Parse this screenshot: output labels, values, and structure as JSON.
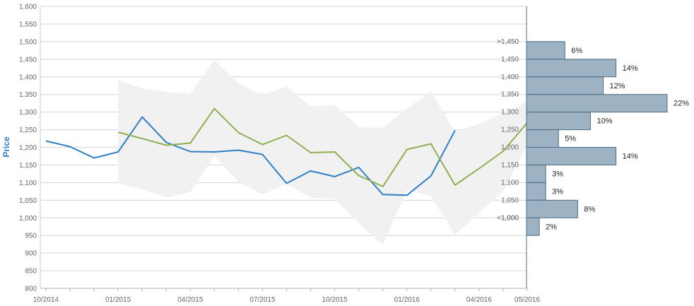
{
  "chart_data": {
    "type": "line",
    "title": "",
    "xlabel": "",
    "ylabel": "Price",
    "ylim": [
      800,
      1600
    ],
    "y_ticks": [
      "1,600",
      "1,550",
      "1,500",
      "1,450",
      "1,400",
      "1,350",
      "1,300",
      "1,250",
      "1,200",
      "1,150",
      "1,100",
      "1,050",
      "1,000",
      "950",
      "900",
      "850",
      "800"
    ],
    "x_tick_labels": [
      "10/2014",
      "01/2015",
      "04/2015",
      "07/2015",
      "10/2015",
      "01/2016",
      "04/2016",
      "05/2016"
    ],
    "grid": true,
    "colors": {
      "series_blue": "#2f80c8",
      "series_green": "#8eb050",
      "band_fill": "#f1f1f1",
      "hist_fill": "#9db2c2",
      "hist_stroke": "#4d6b80",
      "ylabel_color": "#2f80c8"
    },
    "series": [
      {
        "values": [
          1218,
          1202,
          1170,
          1187,
          1286,
          1214,
          1188,
          1187,
          1192,
          1180,
          1098,
          1133,
          1117,
          1143,
          1066,
          1064,
          1119,
          1248
        ]
      },
      {
        "values": [
          null,
          null,
          null,
          1243,
          1225,
          1206,
          1212,
          1310,
          1242,
          1208,
          1234,
          1185,
          1187,
          1120,
          1089,
          1194,
          1210,
          1093,
          1140,
          1189,
          1270
        ]
      }
    ],
    "band": {
      "upper": [
        null,
        null,
        null,
        1390,
        1368,
        1357,
        1352,
        1447,
        1383,
        1347,
        1373,
        1316,
        1320,
        1257,
        1256,
        1310,
        1358,
        1245,
        1266,
        1298,
        1331
      ],
      "lower": [
        null,
        null,
        null,
        1098,
        1081,
        1057,
        1073,
        1175,
        1103,
        1066,
        1097,
        1057,
        1054,
        984,
        923,
        1079,
        1062,
        952,
        1014,
        1075,
        1208
      ]
    },
    "histogram": {
      "bins": [
        ">1,450",
        "1,450",
        "1,400",
        "1,350",
        "1,300",
        "1,250",
        "1,200",
        "1,150",
        "1,100",
        "1,050",
        "1,000",
        "<1,000"
      ],
      "percent_labels": [
        "6%",
        "14%",
        "12%",
        "22%",
        "10%",
        "5%",
        "14%",
        "3%",
        "3%",
        "8%",
        "2%"
      ],
      "percent_values": [
        6,
        14,
        12,
        22,
        10,
        5,
        14,
        3,
        3,
        8,
        2
      ],
      "bin_upper": [
        1500,
        1450,
        1400,
        1350,
        1300,
        1250,
        1200,
        1150,
        1100,
        1050,
        1000
      ]
    }
  }
}
